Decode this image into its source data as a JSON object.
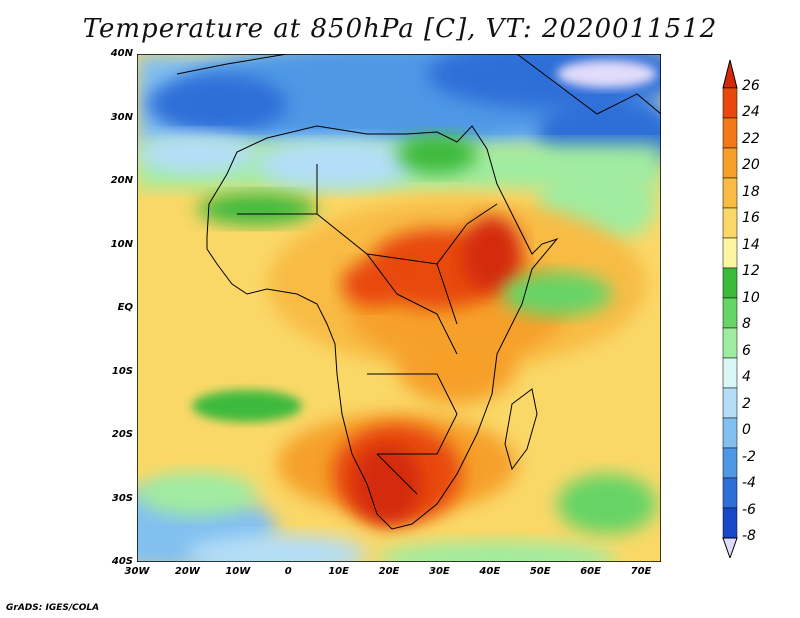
{
  "title": "Temperature at 850hPa [C], VT: 2020011512",
  "credit": "GrADS: IGES/COLA",
  "y_ticks": [
    "40N",
    "30N",
    "20N",
    "10N",
    "EQ",
    "10S",
    "20S",
    "30S",
    "40S"
  ],
  "x_ticks": [
    "30W",
    "20W",
    "10W",
    "0",
    "10E",
    "20E",
    "30E",
    "40E",
    "50E",
    "60E",
    "70E"
  ],
  "colorbar": {
    "labels": [
      "26",
      "24",
      "22",
      "20",
      "18",
      "16",
      "14",
      "12",
      "10",
      "8",
      "6",
      "4",
      "2",
      "0",
      "-2",
      "-4",
      "-6",
      "-8"
    ],
    "colors": [
      "#d42a0a",
      "#e8480c",
      "#f27818",
      "#f6a02a",
      "#f8bc44",
      "#fad868",
      "#fcf4a0",
      "#3cba3c",
      "#66d466",
      "#a0eca0",
      "#d8f6f6",
      "#b4def8",
      "#82c0f0",
      "#5098e6",
      "#2e6ed8",
      "#1848c8",
      "#0c24b4",
      "#08106e"
    ],
    "top_color": "#d42a0a",
    "bottom_color": "#e2dcfa"
  }
}
